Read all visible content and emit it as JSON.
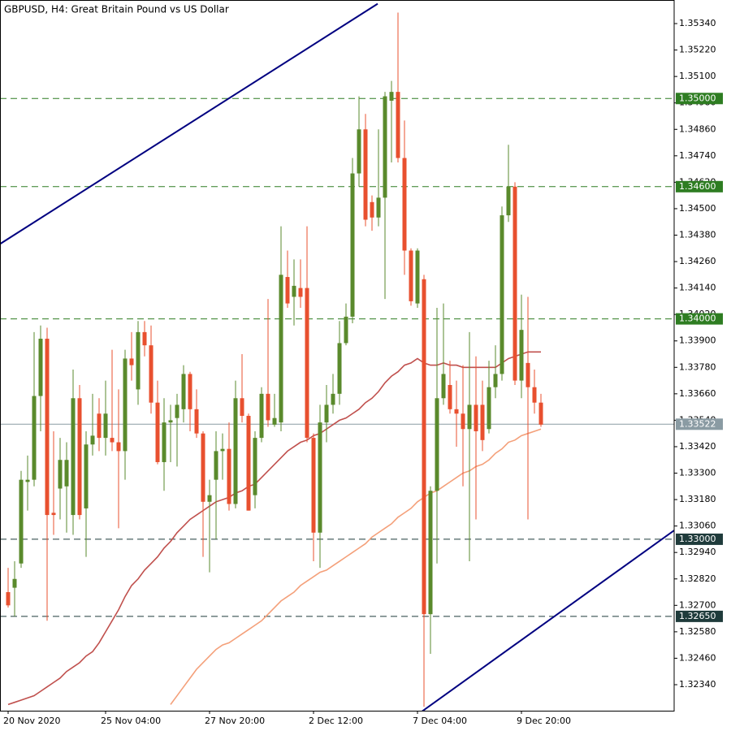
{
  "chart_data": {
    "type": "candlestick",
    "title": "GBPUSD, H4:  Great Britain Pound vs US Dollar",
    "up_color": "#5a8a2c",
    "down_color": "#e8502f",
    "categories": [
      "20 Nov 2020",
      null,
      null,
      null,
      null,
      null,
      null,
      null,
      null,
      null,
      null,
      null,
      null,
      null,
      null,
      "25 Nov 04:00",
      null,
      null,
      null,
      null,
      null,
      null,
      null,
      null,
      null,
      null,
      null,
      null,
      null,
      null,
      null,
      "27 Nov 20:00",
      null,
      null,
      null,
      null,
      null,
      null,
      null,
      null,
      null,
      null,
      null,
      null,
      null,
      null,
      null,
      "2 Dec 12:00",
      null,
      null,
      null,
      null,
      null,
      null,
      null,
      null,
      null,
      null,
      null,
      null,
      null,
      null,
      null,
      "7 Dec 04:00",
      null,
      null,
      null,
      null,
      null,
      null,
      null,
      null,
      null,
      null,
      null,
      null,
      null,
      null,
      null,
      "9 Dec 20:00",
      null,
      null,
      null
    ],
    "open": [
      1.3276,
      1.3278,
      1.3289,
      1.3326,
      1.3327,
      1.3365,
      1.3391,
      1.3312,
      1.3323,
      1.3324,
      1.3311,
      1.3364,
      1.3314,
      1.3343,
      1.3357,
      1.3346,
      1.3346,
      1.3344,
      1.334,
      1.3382,
      1.3368,
      1.3394,
      1.3388,
      1.3362,
      1.3335,
      1.3353,
      1.3355,
      1.3359,
      1.3375,
      1.3359,
      1.3348,
      1.3317,
      1.3327,
      1.334,
      1.3341,
      1.3316,
      1.3364,
      1.3356,
      1.332,
      1.3346,
      1.3366,
      1.3352,
      1.3353,
      1.3419,
      1.341,
      1.3414,
      1.3414,
      1.3346,
      1.3303,
      1.3353,
      1.3361,
      1.3366,
      1.3389,
      1.3401,
      1.3466,
      1.3486,
      1.3453,
      1.3446,
      1.3455,
      1.3499,
      1.3503,
      1.3473,
      1.3431,
      1.3407,
      1.3418,
      1.3266,
      1.3322,
      1.3364,
      1.337,
      1.3359,
      1.3357,
      1.335,
      1.3361,
      1.3361,
      1.335,
      1.3369,
      1.3375,
      1.3447,
      1.346,
      1.3372,
      1.338,
      1.3369,
      1.3362
    ],
    "high": [
      1.3287,
      1.329,
      1.3331,
      1.3338,
      1.3394,
      1.3397,
      1.3396,
      1.3349,
      1.3346,
      1.3344,
      1.3377,
      1.337,
      1.3349,
      1.3366,
      1.3364,
      1.3372,
      1.3386,
      1.3368,
      1.3386,
      1.3394,
      1.3399,
      1.3399,
      1.3397,
      1.3372,
      1.3364,
      1.3361,
      1.3366,
      1.3379,
      1.3376,
      1.3368,
      1.3349,
      1.3327,
      1.3349,
      1.3348,
      1.3353,
      1.3372,
      1.3384,
      1.3357,
      1.3349,
      1.3369,
      1.3409,
      1.3366,
      1.3442,
      1.3431,
      1.3427,
      1.3427,
      1.3442,
      1.3348,
      1.3361,
      1.337,
      1.3375,
      1.3399,
      1.3407,
      1.3473,
      1.3501,
      1.3493,
      1.3456,
      1.3486,
      1.3503,
      1.3508,
      1.3539,
      1.349,
      1.3432,
      1.3432,
      1.342,
      1.3324,
      1.3405,
      1.3407,
      1.3381,
      1.3372,
      1.3379,
      1.3394,
      1.3383,
      1.3372,
      1.3381,
      1.3388,
      1.3451,
      1.3479,
      1.3462,
      1.3411,
      1.341,
      1.3377,
      1.3366
    ],
    "low": [
      1.3269,
      1.3265,
      1.3287,
      1.3313,
      1.3324,
      1.3349,
      1.3263,
      1.3302,
      1.3309,
      1.3303,
      1.3302,
      1.3309,
      1.3292,
      1.3338,
      1.334,
      1.3338,
      1.334,
      1.3305,
      1.3327,
      1.3372,
      1.3361,
      1.3383,
      1.3357,
      1.3334,
      1.3322,
      1.3335,
      1.3333,
      1.3353,
      1.3349,
      1.3346,
      1.3292,
      1.3285,
      1.33,
      1.3327,
      1.3313,
      1.3314,
      1.3353,
      1.3313,
      1.3314,
      1.3344,
      1.3351,
      1.3351,
      1.3349,
      1.3405,
      1.3397,
      1.3405,
      1.3344,
      1.329,
      1.3287,
      1.3344,
      1.3357,
      1.3361,
      1.3388,
      1.3398,
      1.346,
      1.3442,
      1.344,
      1.3442,
      1.3409,
      1.3471,
      1.3471,
      1.342,
      1.3406,
      1.3405,
      1.3224,
      1.3248,
      1.3289,
      1.3361,
      1.3357,
      1.3342,
      1.3324,
      1.329,
      1.3309,
      1.334,
      1.3348,
      1.3364,
      1.3372,
      1.3444,
      1.337,
      1.3364,
      1.3309,
      1.3357,
      1.3351
    ],
    "close": [
      1.327,
      1.3282,
      1.3327,
      1.3327,
      1.3365,
      1.3391,
      1.3311,
      1.3311,
      1.3336,
      1.3336,
      1.3364,
      1.3311,
      1.3343,
      1.3347,
      1.3346,
      1.3357,
      1.3344,
      1.334,
      1.3382,
      1.3379,
      1.3394,
      1.3388,
      1.3362,
      1.3335,
      1.3353,
      1.3354,
      1.3361,
      1.3375,
      1.3359,
      1.3348,
      1.3317,
      1.332,
      1.334,
      1.3341,
      1.3316,
      1.3364,
      1.3356,
      1.3313,
      1.3346,
      1.3366,
      1.3354,
      1.3355,
      1.342,
      1.3407,
      1.3415,
      1.341,
      1.3346,
      1.3303,
      1.3353,
      1.3361,
      1.3366,
      1.3389,
      1.3401,
      1.3466,
      1.3486,
      1.3445,
      1.3446,
      1.3455,
      1.3501,
      1.3503,
      1.3473,
      1.3431,
      1.3408,
      1.3431,
      1.3266,
      1.3322,
      1.3364,
      1.3375,
      1.3359,
      1.3357,
      1.335,
      1.3361,
      1.3349,
      1.3345,
      1.3369,
      1.3375,
      1.3447,
      1.346,
      1.3372,
      1.3395,
      1.3369,
      1.3362,
      1.3352
    ],
    "series": [
      {
        "color": "#c0504d",
        "values": [
          1.3225,
          1.3226,
          1.3227,
          1.3228,
          1.3229,
          1.3231,
          1.3233,
          1.3235,
          1.3237,
          1.324,
          1.3242,
          1.3244,
          1.3247,
          1.3249,
          1.3253,
          1.3258,
          1.3263,
          1.3268,
          1.3274,
          1.3279,
          1.3282,
          1.3286,
          1.3289,
          1.3292,
          1.3296,
          1.3299,
          1.3303,
          1.3306,
          1.3309,
          1.3311,
          1.3313,
          1.3315,
          1.3317,
          1.3318,
          1.3319,
          1.3321,
          1.3322,
          1.3324,
          1.3325,
          1.3328,
          1.3331,
          1.3334,
          1.3337,
          1.334,
          1.3342,
          1.3344,
          1.3345,
          1.3347,
          1.3348,
          1.335,
          1.3352,
          1.3354,
          1.3355,
          1.3357,
          1.3359,
          1.3362,
          1.3364,
          1.3367,
          1.3371,
          1.3374,
          1.3376,
          1.3379,
          1.338,
          1.3382,
          1.338,
          1.3379,
          1.3379,
          1.338,
          1.3379,
          1.3379,
          1.3378,
          1.3378,
          1.3378,
          1.3378,
          1.3378,
          1.3378,
          1.338,
          1.3382,
          1.3383,
          1.3384,
          1.3385,
          1.3385,
          1.3385
        ]
      },
      {
        "color": "#f4a07a",
        "values": [
          null,
          null,
          null,
          null,
          null,
          null,
          null,
          null,
          null,
          null,
          null,
          null,
          null,
          null,
          null,
          null,
          null,
          null,
          null,
          null,
          null,
          null,
          null,
          null,
          null,
          1.3225,
          1.3229,
          1.3233,
          1.3237,
          1.3241,
          1.3244,
          1.3247,
          1.325,
          1.3252,
          1.3253,
          1.3255,
          1.3257,
          1.3259,
          1.3261,
          1.3263,
          1.3266,
          1.3269,
          1.3272,
          1.3274,
          1.3276,
          1.3279,
          1.3281,
          1.3283,
          1.3285,
          1.3286,
          1.3288,
          1.329,
          1.3292,
          1.3294,
          1.3296,
          1.3298,
          1.3301,
          1.3303,
          1.3305,
          1.3307,
          1.331,
          1.3312,
          1.3314,
          1.3317,
          1.3319,
          1.3321,
          1.3322,
          1.3324,
          1.3326,
          1.3328,
          1.333,
          1.3331,
          1.3333,
          1.3334,
          1.3336,
          1.3339,
          1.3341,
          1.3344,
          1.3345,
          1.3347,
          1.3348,
          1.3349,
          1.335
        ]
      }
    ],
    "trendlines": [
      {
        "color": "#000080",
        "points": [
          [
            -1.25,
            1.3434
          ],
          [
            56.875,
            1.3543
          ]
        ]
      },
      {
        "color": "#000080",
        "points": [
          [
            63.75,
            1.3222
          ],
          [
            102.5,
            1.3304
          ]
        ]
      }
    ],
    "levels": [
      {
        "value": 1.35,
        "label": "1.35000",
        "color": "#2e7d22"
      },
      {
        "value": 1.346,
        "label": "1.34600",
        "color": "#2e7d22"
      },
      {
        "value": 1.34,
        "label": "1.34000",
        "color": "#2e7d22"
      },
      {
        "value": 1.33,
        "label": "1.33000",
        "color": "#1f3b3b"
      },
      {
        "value": 1.3265,
        "label": "1.32650",
        "color": "#1f3b3b"
      }
    ],
    "current_price": {
      "value": 1.33522,
      "label": "1.33522",
      "color": "#8a9ba3"
    },
    "ylim": [
      1.32222,
      1.35447
    ],
    "yticks": [
      {
        "value": 1.3534,
        "label": "1.35340"
      },
      {
        "value": 1.3522,
        "label": "1.35220"
      },
      {
        "value": 1.351,
        "label": "1.35100"
      },
      {
        "value": 1.3498,
        "label": "1.34980"
      },
      {
        "value": 1.3486,
        "label": "1.34860"
      },
      {
        "value": 1.3474,
        "label": "1.34740"
      },
      {
        "value": 1.3462,
        "label": "1.34620"
      },
      {
        "value": 1.345,
        "label": "1.34500"
      },
      {
        "value": 1.3438,
        "label": "1.34380"
      },
      {
        "value": 1.3426,
        "label": "1.34260"
      },
      {
        "value": 1.3414,
        "label": "1.34140"
      },
      {
        "value": 1.3402,
        "label": "1.34020"
      },
      {
        "value": 1.339,
        "label": "1.33900"
      },
      {
        "value": 1.3378,
        "label": "1.33780"
      },
      {
        "value": 1.3366,
        "label": "1.33660"
      },
      {
        "value": 1.3354,
        "label": "1.33540"
      },
      {
        "value": 1.3342,
        "label": "1.33420"
      },
      {
        "value": 1.333,
        "label": "1.33300"
      },
      {
        "value": 1.3318,
        "label": "1.33180"
      },
      {
        "value": 1.3306,
        "label": "1.33060"
      },
      {
        "value": 1.3294,
        "label": "1.32940"
      },
      {
        "value": 1.3282,
        "label": "1.32820"
      },
      {
        "value": 1.327,
        "label": "1.32700"
      },
      {
        "value": 1.3258,
        "label": "1.32580"
      },
      {
        "value": 1.3246,
        "label": "1.32460"
      },
      {
        "value": 1.3234,
        "label": "1.32340"
      }
    ]
  }
}
